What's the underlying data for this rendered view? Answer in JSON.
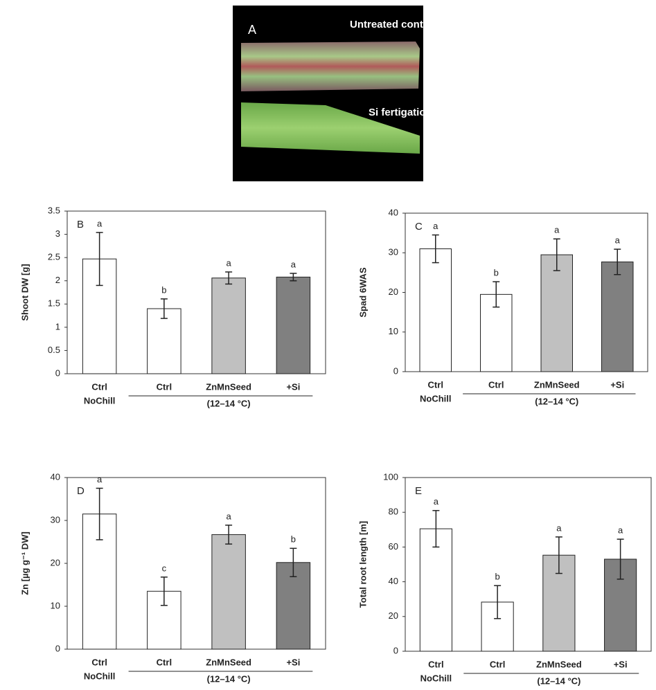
{
  "photo": {
    "panel_label": "A",
    "labels": [
      "Untreated control",
      "Si fertigation"
    ]
  },
  "chart_data": [
    {
      "type": "bar",
      "panel_label": "B",
      "ylabel": "Shoot DW [g]",
      "categories": [
        "Ctrl",
        "Ctrl",
        "ZnMnSeed",
        "+Si"
      ],
      "x_group_labels": [
        "NoChill",
        "(12–14 °C)"
      ],
      "values": [
        2.47,
        1.4,
        2.06,
        2.08
      ],
      "errors": [
        0.57,
        0.21,
        0.13,
        0.08
      ],
      "letters": [
        "a",
        "b",
        "a",
        "a"
      ],
      "colors": [
        "#ffffff",
        "#ffffff",
        "#c0c0c0",
        "#808080"
      ],
      "ylim": [
        0,
        3.5
      ],
      "yticks": [
        0,
        0.5,
        1,
        1.5,
        2,
        2.5,
        3,
        3.5
      ]
    },
    {
      "type": "bar",
      "panel_label": "C",
      "ylabel": "Spad 6WAS",
      "categories": [
        "Ctrl",
        "Ctrl",
        "ZnMnSeed",
        "+Si"
      ],
      "x_group_labels": [
        "NoChill",
        "(12–14 °C)"
      ],
      "values": [
        31,
        19.5,
        29.5,
        27.7
      ],
      "errors": [
        3.5,
        3.2,
        4,
        3.2
      ],
      "letters": [
        "a",
        "b",
        "a",
        "a"
      ],
      "colors": [
        "#ffffff",
        "#ffffff",
        "#c0c0c0",
        "#808080"
      ],
      "ylim": [
        0,
        40
      ],
      "yticks": [
        0,
        10,
        20,
        30,
        40
      ]
    },
    {
      "type": "bar",
      "panel_label": "D",
      "ylabel": "Zn [µg g⁻¹ DW]",
      "categories": [
        "Ctrl",
        "Ctrl",
        "ZnMnSeed",
        "+Si"
      ],
      "x_group_labels": [
        "NoChill",
        "(12–14 °C)"
      ],
      "values": [
        31.5,
        13.5,
        26.7,
        20.2
      ],
      "errors": [
        6,
        3.3,
        2.2,
        3.3
      ],
      "letters": [
        "a",
        "c",
        "a",
        "b"
      ],
      "colors": [
        "#ffffff",
        "#ffffff",
        "#c0c0c0",
        "#808080"
      ],
      "ylim": [
        0,
        40
      ],
      "yticks": [
        0,
        10,
        20,
        30,
        40
      ]
    },
    {
      "type": "bar",
      "panel_label": "E",
      "ylabel": "Total root length [m]",
      "categories": [
        "Ctrl",
        "Ctrl",
        "ZnMnSeed",
        "+Si"
      ],
      "x_group_labels": [
        "NoChill",
        "(12–14 °C)"
      ],
      "values": [
        70.5,
        28.3,
        55.3,
        53
      ],
      "errors": [
        10.5,
        9.5,
        10.5,
        11.5
      ],
      "letters": [
        "a",
        "b",
        "a",
        "a"
      ],
      "colors": [
        "#ffffff",
        "#ffffff",
        "#c0c0c0",
        "#808080"
      ],
      "ylim": [
        0,
        100
      ],
      "yticks": [
        0,
        20,
        40,
        60,
        80,
        100
      ]
    }
  ]
}
